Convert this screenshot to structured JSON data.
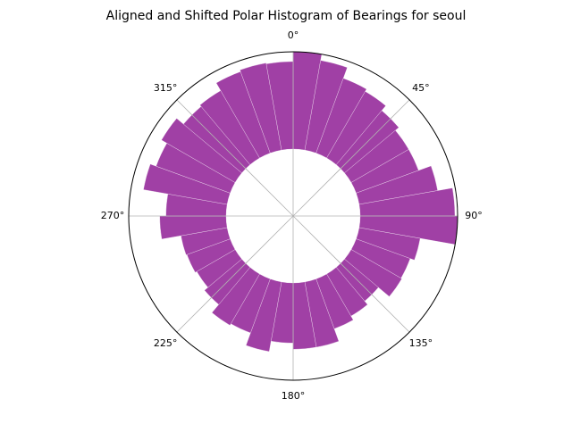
{
  "chart_data": {
    "type": "polar-histogram",
    "title": "Aligned and Shifted Polar Histogram of Bearings for seoul",
    "bins": [
      0,
      10,
      20,
      30,
      40,
      50,
      60,
      70,
      80,
      90,
      100,
      110,
      120,
      130,
      140,
      150,
      160,
      170,
      180,
      190,
      200,
      210,
      220,
      230,
      240,
      250,
      260,
      270,
      280,
      290,
      300,
      310,
      320,
      330,
      340,
      350,
      360
    ],
    "values": [
      110,
      103,
      90,
      87,
      80,
      75,
      75,
      90,
      107,
      110,
      70,
      65,
      66,
      50,
      55,
      60,
      75,
      75,
      68,
      80,
      65,
      67,
      55,
      50,
      52,
      53,
      75,
      68,
      96,
      89,
      96,
      86,
      88,
      98,
      100,
      99
    ],
    "color": "#9b36a0",
    "rlim": [
      0,
      110
    ],
    "xticks": [
      {
        "value": 0,
        "label": "0°"
      },
      {
        "value": 45,
        "label": "45°"
      },
      {
        "value": 90,
        "label": "90°"
      },
      {
        "value": 135,
        "label": "135°"
      },
      {
        "value": 180,
        "label": "180°"
      },
      {
        "value": 225,
        "label": "225°"
      },
      {
        "value": 270,
        "label": "270°"
      },
      {
        "value": 315,
        "label": "315°"
      }
    ],
    "grid": true
  }
}
